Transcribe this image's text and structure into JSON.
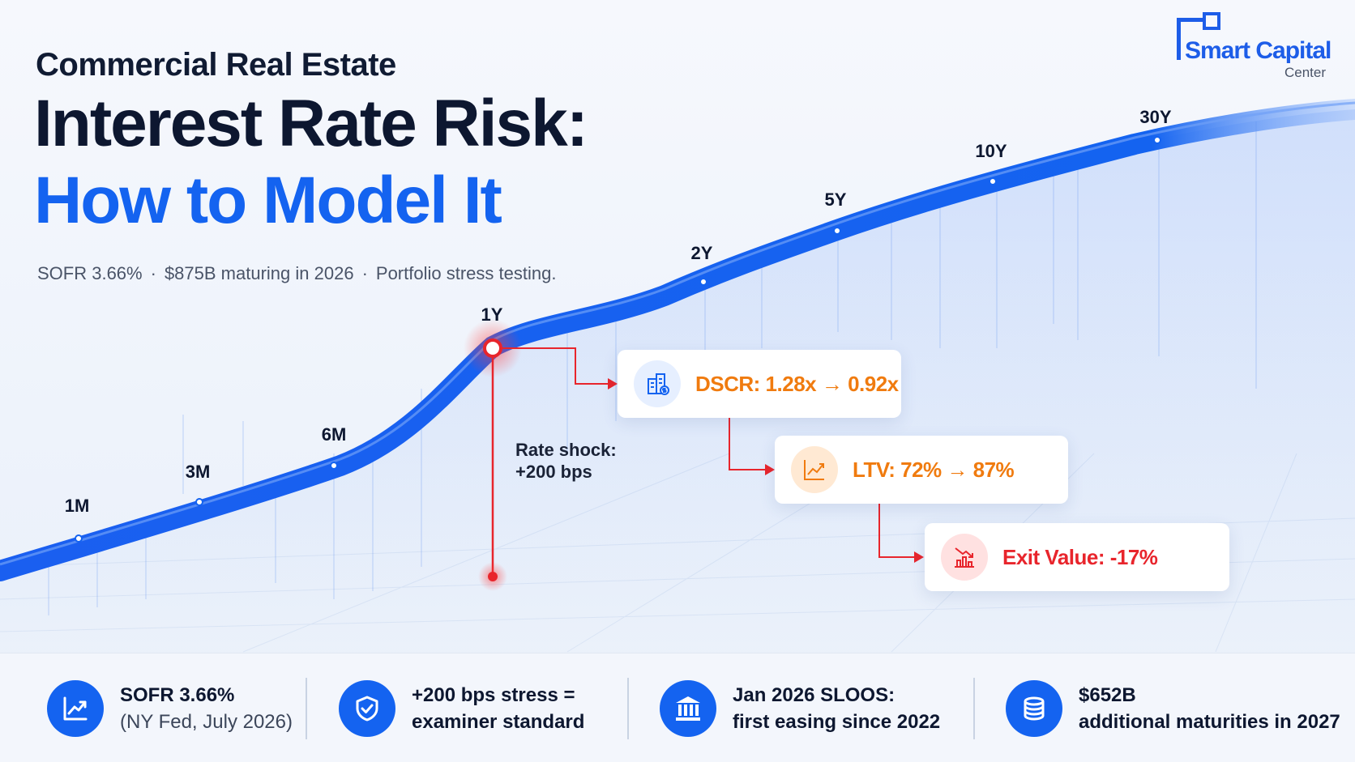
{
  "header": {
    "eyebrow": "Commercial Real Estate",
    "headline": "Interest Rate Risk:",
    "headline_accent": "How to Model It",
    "subline": [
      "SOFR 3.66%",
      "$875B maturing in 2026",
      "Portfolio stress testing."
    ],
    "separator": "·"
  },
  "logo": {
    "title": "Smart Capital",
    "subtitle": "Center"
  },
  "yield_curve": {
    "tenors": [
      "1M",
      "3M",
      "6M",
      "1Y",
      "2Y",
      "5Y",
      "10Y",
      "30Y"
    ],
    "shock_line1": "Rate shock:",
    "shock_line2": "+200 bps"
  },
  "impacts": [
    {
      "label": "DSCR: 1.28x → 0.92x",
      "color": "#f07b0f",
      "icon": "building-dollar-icon"
    },
    {
      "label": "LTV: 72% → 87%",
      "color": "#f07b0f",
      "icon": "rising-chart-icon"
    },
    {
      "label": "Exit Value: -17%",
      "color": "#e8252c",
      "icon": "falling-chart-icon"
    }
  ],
  "footer": {
    "stats": [
      {
        "line1": "SOFR 3.66%",
        "line2": "(NY Fed, July 2026)",
        "icon": "trend-up-icon"
      },
      {
        "line1": "+200 bps stress =",
        "line2": "examiner standard",
        "icon": "shield-check-icon"
      },
      {
        "line1": "Jan 2026 SLOOS:",
        "line2": "first easing since 2022",
        "icon": "bank-icon"
      },
      {
        "line1": "$652B",
        "line2": "additional maturities in 2027",
        "icon": "coins-icon"
      }
    ]
  },
  "colors": {
    "accent": "#1463f0",
    "orange": "#f07b0f",
    "red": "#e8252c",
    "navy": "#0d1730"
  }
}
